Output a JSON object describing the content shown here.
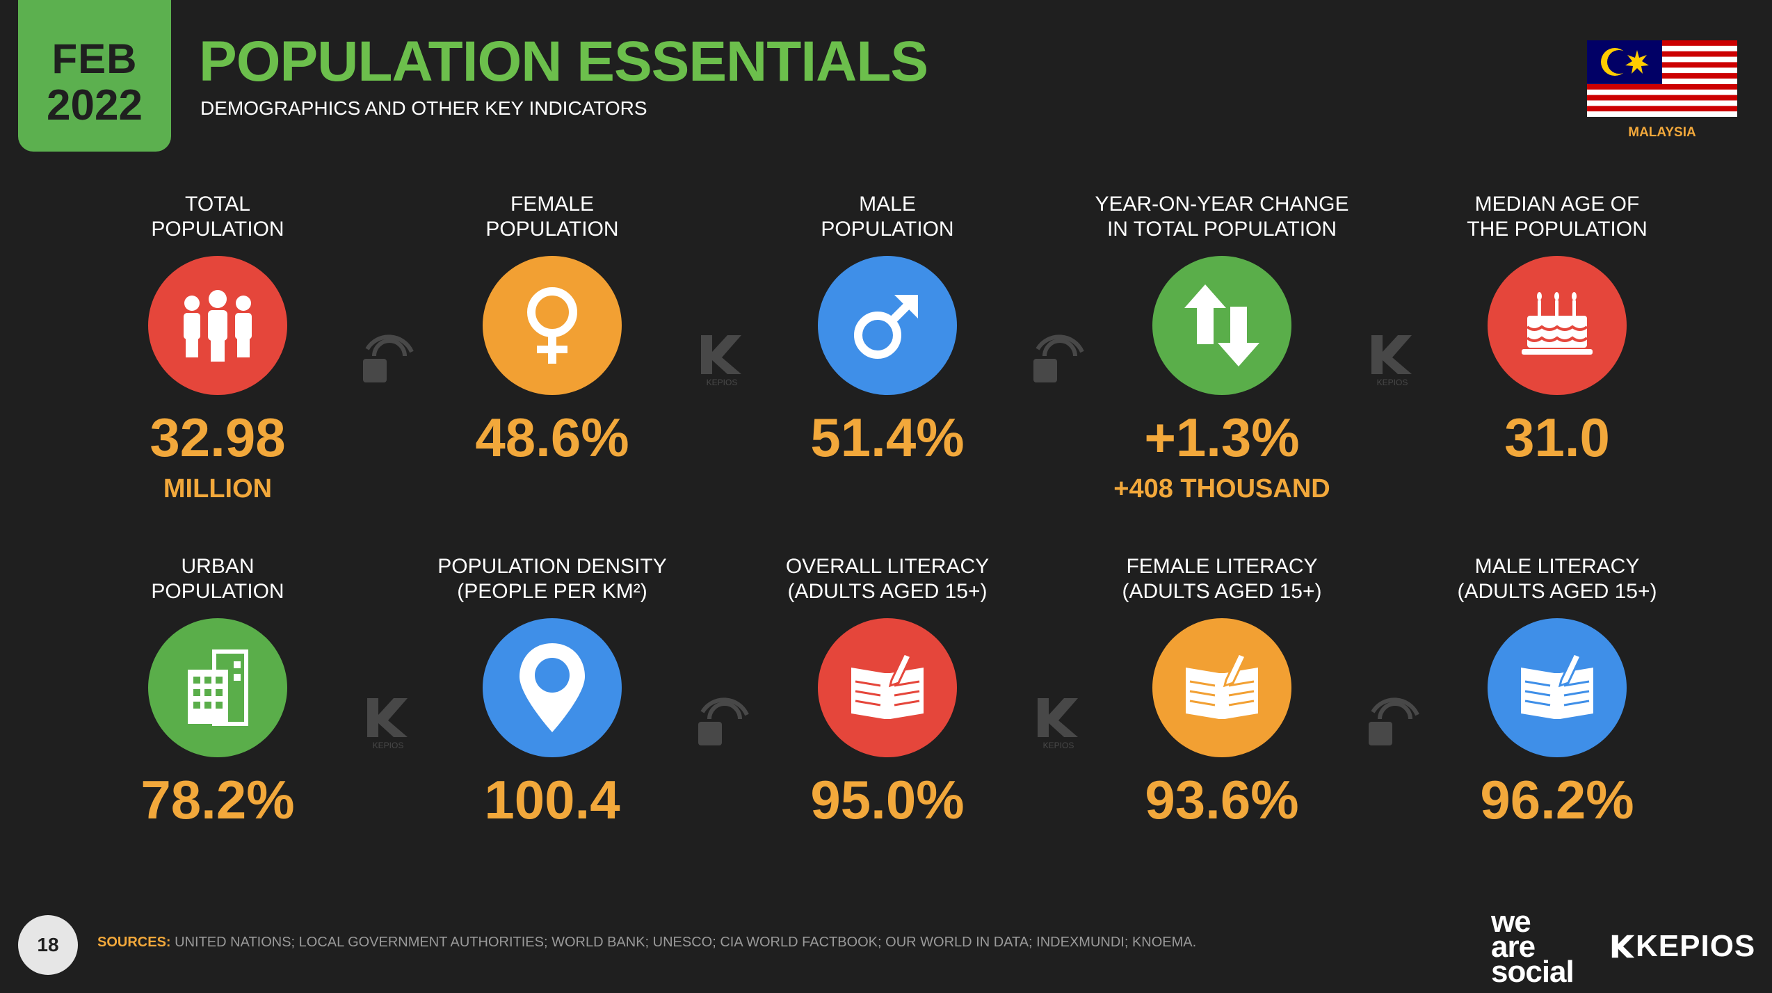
{
  "header": {
    "month": "FEB",
    "year": "2022",
    "title": "POPULATION ESSENTIALS",
    "subtitle": "DEMOGRAPHICS AND OTHER KEY INDICATORS",
    "country": "MALAYSIA"
  },
  "stats": [
    {
      "label1": "TOTAL",
      "label2": "POPULATION",
      "value": "32.98",
      "sub": "MILLION",
      "color": "#e5463b",
      "icon": "people-icon"
    },
    {
      "label1": "FEMALE",
      "label2": "POPULATION",
      "value": "48.6%",
      "sub": "",
      "color": "#f2a033",
      "icon": "female-icon"
    },
    {
      "label1": "MALE",
      "label2": "POPULATION",
      "value": "51.4%",
      "sub": "",
      "color": "#3f8fe8",
      "icon": "male-icon"
    },
    {
      "label1": "YEAR-ON-YEAR CHANGE",
      "label2": "IN TOTAL POPULATION",
      "value": "+1.3%",
      "sub": "+408 THOUSAND",
      "color": "#5aae4a",
      "icon": "up-down-arrows-icon"
    },
    {
      "label1": "MEDIAN AGE OF",
      "label2": "THE POPULATION",
      "value": "31.0",
      "sub": "",
      "color": "#e5463b",
      "icon": "birthday-cake-icon"
    },
    {
      "label1": "URBAN",
      "label2": "POPULATION",
      "value": "78.2%",
      "sub": "",
      "color": "#5aae4a",
      "icon": "buildings-icon"
    },
    {
      "label1": "POPULATION DENSITY",
      "label2": "(PEOPLE PER KM²)",
      "value": "100.4",
      "sub": "",
      "color": "#3f8fe8",
      "icon": "map-pin-icon"
    },
    {
      "label1": "OVERALL LITERACY",
      "label2": "(ADULTS AGED 15+)",
      "value": "95.0%",
      "sub": "",
      "color": "#e5463b",
      "icon": "book-icon"
    },
    {
      "label1": "FEMALE LITERACY",
      "label2": "(ADULTS AGED 15+)",
      "value": "93.6%",
      "sub": "",
      "color": "#f2a033",
      "icon": "book-icon"
    },
    {
      "label1": "MALE LITERACY",
      "label2": "(ADULTS AGED 15+)",
      "value": "96.2%",
      "sub": "",
      "color": "#3f8fe8",
      "icon": "book-icon"
    }
  ],
  "watermarks": {
    "kepios_label": "KEPIOS"
  },
  "footer": {
    "page_number": "18",
    "sources_label": "SOURCES:",
    "sources_text": "UNITED NATIONS; LOCAL GOVERNMENT AUTHORITIES; WORLD BANK; UNESCO; CIA WORLD FACTBOOK; OUR WORLD IN DATA; INDEXMUNDI; KNOEMA.",
    "logo_we": "we",
    "logo_are": "are",
    "logo_social": "social",
    "logo_kepios": "KEPIOS"
  }
}
